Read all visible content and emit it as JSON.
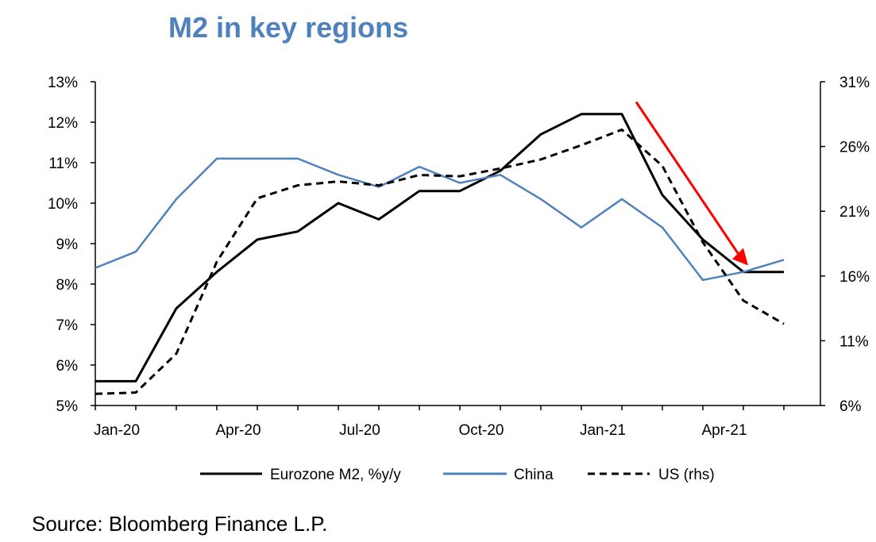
{
  "title": "M2 in key regions",
  "source": "Source: Bloomberg Finance L.P.",
  "colors": {
    "eurozone": "#000000",
    "china": "#4f81bd",
    "us": "#000000",
    "arrow": "#ff0000",
    "title": "#4f81bd"
  },
  "chart_data": {
    "type": "line",
    "title": "M2 in key regions",
    "x": [
      "Jan-20",
      "Feb-20",
      "Mar-20",
      "Apr-20",
      "May-20",
      "Jun-20",
      "Jul-20",
      "Aug-20",
      "Sep-20",
      "Oct-20",
      "Nov-20",
      "Dec-20",
      "Jan-21",
      "Feb-21",
      "Mar-21",
      "Apr-21",
      "May-21",
      "Jun-21"
    ],
    "x_tick_labels": [
      "Jan-20",
      "Apr-20",
      "Jul-20",
      "Oct-20",
      "Jan-21",
      "Apr-21"
    ],
    "y_left": {
      "ylim": [
        5,
        13
      ],
      "tick_labels": [
        "5%",
        "6%",
        "7%",
        "8%",
        "9%",
        "10%",
        "11%",
        "12%",
        "13%"
      ]
    },
    "y_right": {
      "ylim": [
        6,
        31
      ],
      "tick_labels": [
        "6%",
        "11%",
        "16%",
        "21%",
        "26%",
        "31%"
      ]
    },
    "series": [
      {
        "name": "Eurozone M2, %y/y",
        "axis": "left",
        "style": "solid",
        "values": [
          5.6,
          5.6,
          7.4,
          8.3,
          9.1,
          9.3,
          10.0,
          9.6,
          10.3,
          10.3,
          10.8,
          11.7,
          12.2,
          12.2,
          10.2,
          9.1,
          8.3,
          8.3
        ]
      },
      {
        "name": "China",
        "axis": "left",
        "style": "solid",
        "values": [
          8.4,
          8.8,
          10.1,
          11.1,
          11.1,
          11.1,
          10.7,
          10.4,
          10.9,
          10.5,
          10.7,
          10.1,
          9.4,
          10.1,
          9.4,
          8.1,
          8.3,
          8.6
        ]
      },
      {
        "name": "US (rhs)",
        "axis": "right",
        "style": "dashed",
        "values": [
          6.9,
          7.0,
          10.0,
          17.1,
          22.0,
          23.0,
          23.3,
          23.0,
          23.8,
          23.7,
          24.3,
          25.0,
          26.1,
          27.3,
          24.5,
          18.6,
          14.1,
          12.3
        ]
      }
    ],
    "legend": {
      "placement": "bottom",
      "entries": [
        "Eurozone M2, %y/y",
        "China",
        "US (rhs)"
      ]
    },
    "annotations": [
      {
        "type": "arrow",
        "color": "red",
        "from_x": "Feb-21",
        "from_y": 12.5,
        "to_x": "May-21",
        "to_y": 8.5
      }
    ],
    "grid": false
  }
}
